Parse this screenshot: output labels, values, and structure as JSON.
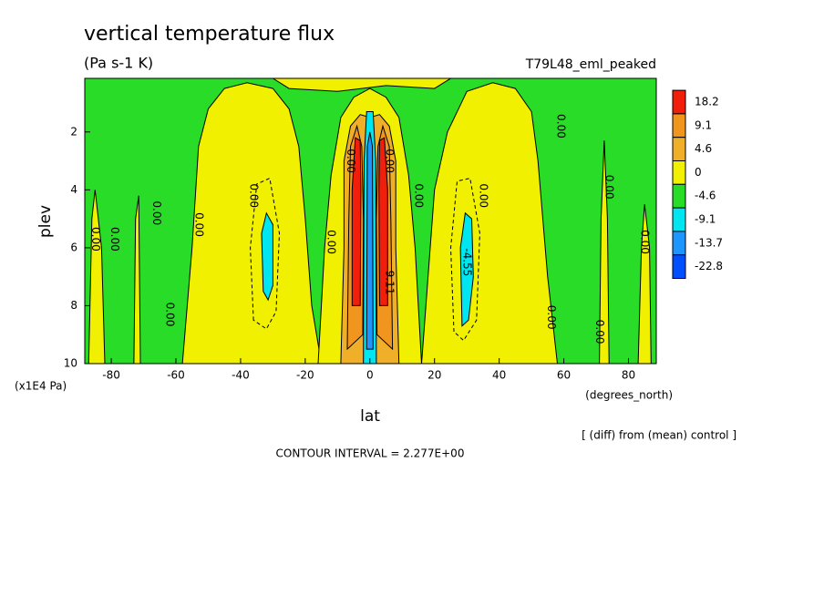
{
  "chart_data": {
    "type": "contour",
    "title": "vertical temperature flux",
    "subtitle": "(Pa s-1 K)",
    "run_label": "T79L48_eml_peaked",
    "x_label": "lat",
    "x_units": "(degrees_north)",
    "y_label": "plev",
    "y_units": "(x1E4 Pa)",
    "note": "[ (diff) from (mean) control ]",
    "contour_interval": "CONTOUR INTERVAL = 2.277E+00",
    "xlim": [
      -88.2,
      88.6
    ],
    "xticks": [
      -80,
      -60,
      -40,
      -20,
      0,
      20,
      40,
      60,
      80
    ],
    "ylim": [
      10,
      0.15
    ],
    "yticks": [
      2,
      4,
      6,
      8,
      10
    ],
    "colorbar": {
      "levels": [
        18.2,
        9.1,
        4.6,
        0,
        -4.6,
        -9.1,
        -13.7,
        -22.8
      ],
      "colors": [
        "#f01e0a",
        "#f0961e",
        "#f0af28",
        "#f0f000",
        "#28dc28",
        "#00e6f0",
        "#1e96ff",
        "#0050ff"
      ]
    },
    "contour_labels": [
      "0.00",
      "-4.55",
      "9.11"
    ]
  }
}
